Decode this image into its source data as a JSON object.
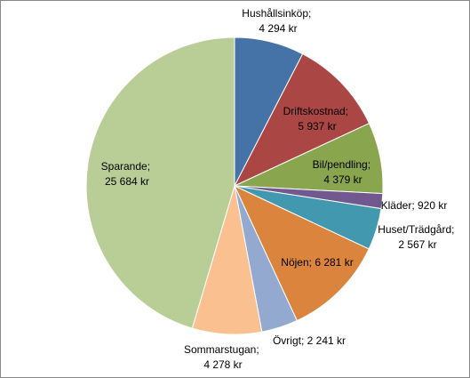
{
  "chart_data": {
    "type": "pie",
    "categories": [
      "Hushållsinköp",
      "Driftskostnad",
      "Bil/pendling",
      "Kläder",
      "Huset/Trädgård",
      "Nöjen",
      "Övrigt",
      "Sommarstugan",
      "Sparande"
    ],
    "values": [
      4294,
      5937,
      4379,
      920,
      2567,
      6281,
      2241,
      4278,
      25684
    ],
    "value_labels": [
      "4 294 kr",
      "5 937 kr",
      "4 379 kr",
      "920 kr",
      "2 567 kr",
      "6 281 kr",
      "2 241 kr",
      "4 278 kr",
      "25 684 kr"
    ],
    "label_separator": "; ",
    "colors": [
      "#4572A7",
      "#AA4643",
      "#89A54E",
      "#71588F",
      "#4198AF",
      "#DB843D",
      "#93A9CF",
      "#FAC090",
      "#B9CD96"
    ]
  }
}
